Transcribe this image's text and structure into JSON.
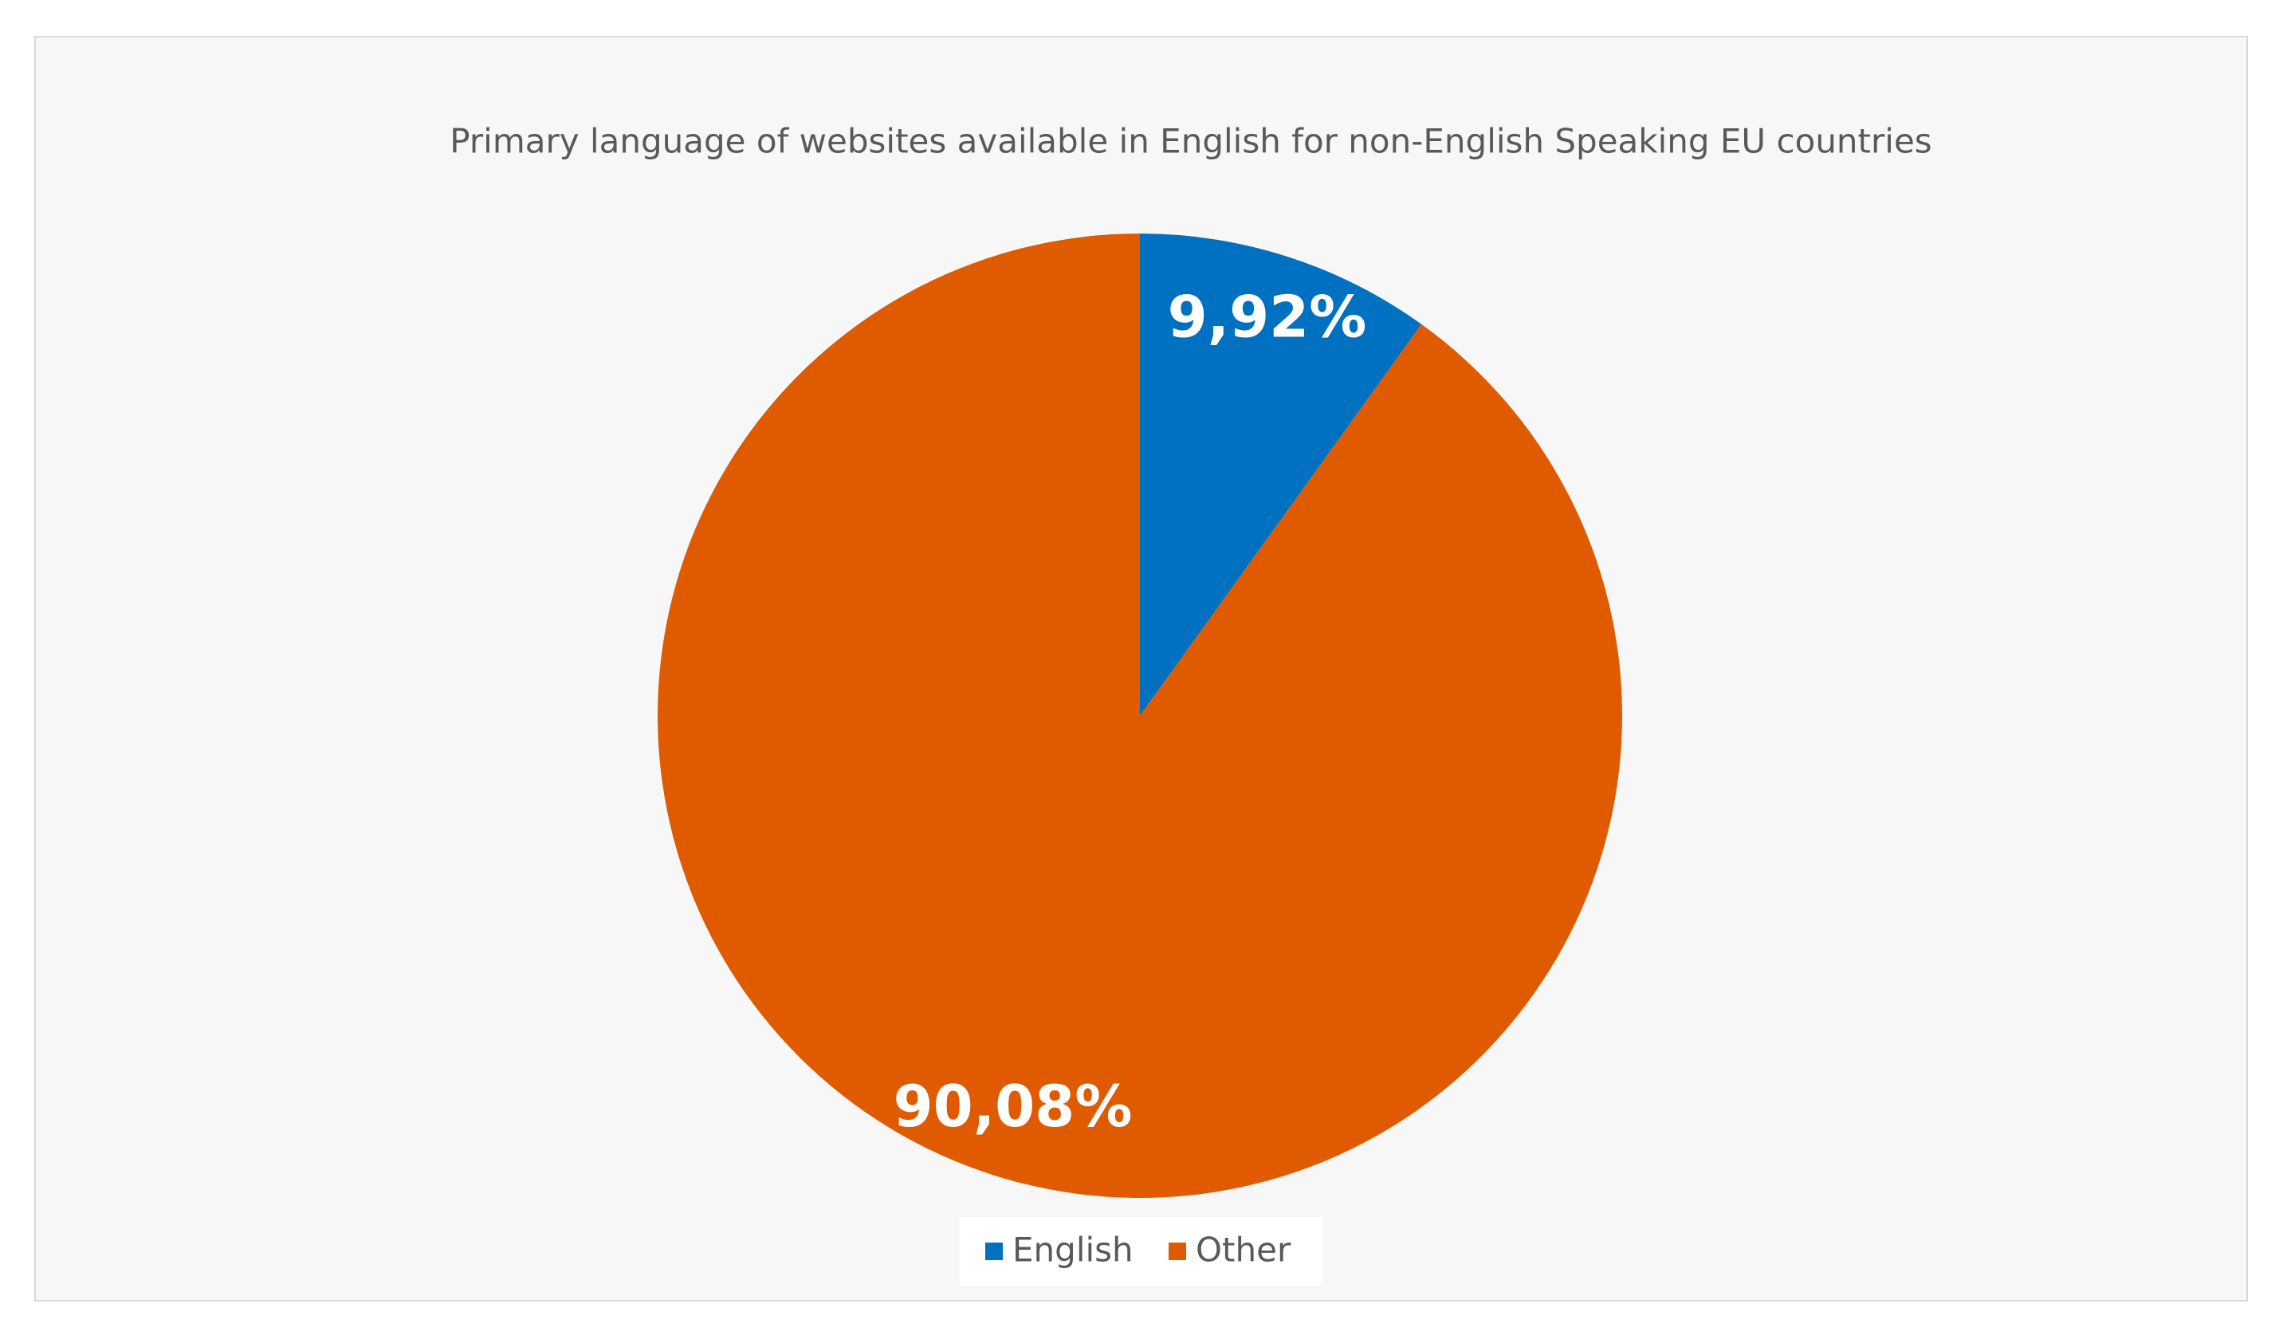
{
  "chart_data": {
    "type": "pie",
    "title": "Primary language of websites available in English for non-English Speaking EU countries",
    "categories": [
      "English",
      "Other"
    ],
    "values": [
      9.92,
      90.08
    ],
    "value_labels": [
      "9,92%",
      "90,08%"
    ],
    "colors": [
      "#0070c0",
      "#e05a00"
    ]
  }
}
